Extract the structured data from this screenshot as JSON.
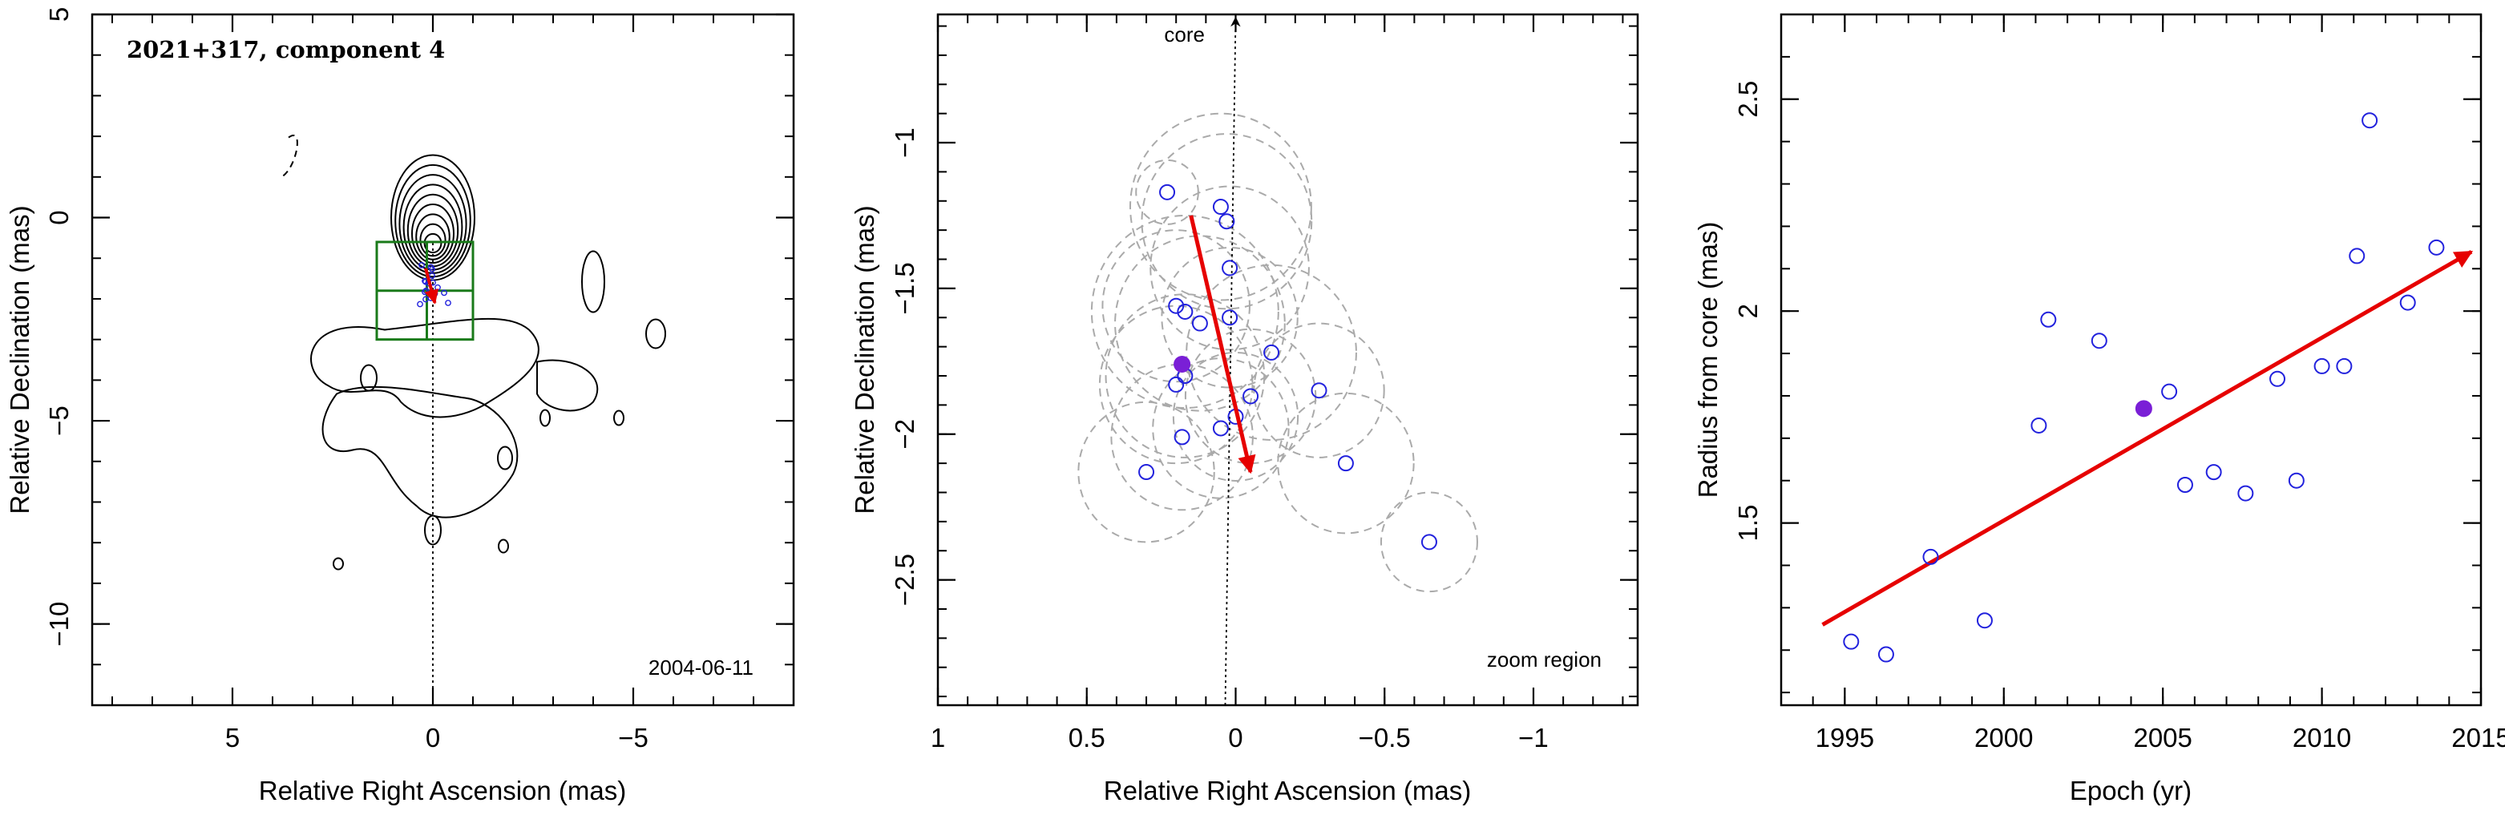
{
  "colors": {
    "accent": "#e60000",
    "points": "#2222dd",
    "filled": "#7a1fd6",
    "contour_box": "#1a7a1a",
    "ellipse": "#aaaaaa"
  },
  "chart_data": [
    {
      "type": "contour",
      "title": "2021+317, component 4",
      "epoch_label": "2004-06-11",
      "xlabel": "Relative Right Ascension (mas)",
      "ylabel": "Relative Declination (mas)",
      "xlim": [
        8.5,
        -9
      ],
      "ylim": [
        -12,
        5
      ],
      "xticks": [
        "5",
        "0",
        "−5"
      ],
      "xtick_values": [
        5,
        0,
        -5
      ],
      "yticks": [
        "5",
        "0",
        "−5",
        "−10"
      ],
      "ytick_values": [
        5,
        0,
        -5,
        -10
      ],
      "zoom_box": {
        "x": [
          1.4,
          -1.0
        ],
        "y": [
          -3.0,
          -0.6
        ]
      },
      "arrow": {
        "from": [
          0.18,
          -1.25
        ],
        "to": [
          -0.05,
          -2.1
        ]
      },
      "points": [
        [
          0.28,
          -1.17
        ],
        [
          0.05,
          -1.22
        ],
        [
          0.02,
          -1.27
        ],
        [
          0.02,
          -1.43
        ],
        [
          0.2,
          -1.56
        ],
        [
          0.18,
          -1.58
        ],
        [
          0.12,
          -1.62
        ],
        [
          0.0,
          -1.6
        ],
        [
          -0.12,
          -1.72
        ],
        [
          0.17,
          -1.8
        ],
        [
          0.2,
          -1.83
        ],
        [
          -0.05,
          -1.87
        ],
        [
          -0.28,
          -1.85
        ],
        [
          0.18,
          -2.01
        ],
        [
          0.05,
          -1.98
        ],
        [
          0.0,
          -1.94
        ],
        [
          -0.38,
          -2.1
        ],
        [
          0.32,
          -2.13
        ]
      ]
    },
    {
      "type": "scatter",
      "title": "",
      "core_label": "core",
      "region_label": "zoom region",
      "xlabel": "Relative Right Ascension (mas)",
      "ylabel": "Relative Declination (mas)",
      "xlim": [
        1,
        -1.35
      ],
      "ylim": [
        -2.93,
        -0.56
      ],
      "xticks": [
        "1",
        "0.5",
        "0",
        "−0.5",
        "−1"
      ],
      "xtick_values": [
        1,
        0.5,
        0,
        -0.5,
        -1
      ],
      "yticks": [
        "−1",
        "−1.5",
        "−2",
        "−2.5"
      ],
      "ytick_values": [
        -1,
        -1.5,
        -2,
        -2.5
      ],
      "points": [
        {
          "x": 0.23,
          "y": -1.17,
          "r": 0.11
        },
        {
          "x": 0.05,
          "y": -1.22,
          "r": 0.32
        },
        {
          "x": 0.03,
          "y": -1.27,
          "r": 0.3
        },
        {
          "x": 0.02,
          "y": -1.43,
          "r": 0.28
        },
        {
          "x": 0.2,
          "y": -1.56,
          "r": 0.26
        },
        {
          "x": 0.17,
          "y": -1.58,
          "r": 0.33
        },
        {
          "x": 0.12,
          "y": -1.62,
          "r": 0.3
        },
        {
          "x": 0.02,
          "y": -1.6,
          "r": 0.24
        },
        {
          "x": -0.12,
          "y": -1.72,
          "r": 0.3
        },
        {
          "x": 0.17,
          "y": -1.8,
          "r": 0.28
        },
        {
          "x": 0.2,
          "y": -1.83,
          "r": 0.27
        },
        {
          "x": -0.05,
          "y": -1.87,
          "r": 0.23
        },
        {
          "x": -0.28,
          "y": -1.85,
          "r": 0.23
        },
        {
          "x": 0.18,
          "y": -2.01,
          "r": 0.25
        },
        {
          "x": 0.05,
          "y": -1.98,
          "r": 0.24
        },
        {
          "x": 0.0,
          "y": -1.94,
          "r": 0.22
        },
        {
          "x": -0.37,
          "y": -2.1,
          "r": 0.24
        },
        {
          "x": 0.3,
          "y": -2.13,
          "r": 0.24
        },
        {
          "x": -0.65,
          "y": -2.37,
          "r": 0.17
        }
      ],
      "filled_point": {
        "x": 0.18,
        "y": -1.76
      },
      "arrow": {
        "from": [
          0.15,
          -1.25
        ],
        "to": [
          -0.05,
          -2.13
        ]
      },
      "core_line": {
        "from": [
          0.035,
          -2.93
        ],
        "to": [
          0.0,
          -0.56
        ]
      }
    },
    {
      "type": "scatter",
      "title": "",
      "xlabel": "Epoch (yr)",
      "ylabel": "Radius from core (mas)",
      "xlim": [
        1993,
        2015
      ],
      "ylim": [
        1.07,
        2.7
      ],
      "xticks": [
        "1995",
        "2000",
        "2005",
        "2010",
        "2015"
      ],
      "xtick_values": [
        1995,
        2000,
        2005,
        2010,
        2015
      ],
      "yticks": [
        "1.5",
        "2",
        "2.5"
      ],
      "ytick_values": [
        1.5,
        2,
        2.5
      ],
      "x": [
        1995.2,
        1996.3,
        1997.7,
        1999.4,
        2001.1,
        2001.4,
        2003.0,
        2005.2,
        2005.7,
        2006.6,
        2007.6,
        2008.6,
        2009.2,
        2010.0,
        2010.7,
        2011.1,
        2011.5,
        2012.7,
        2013.6
      ],
      "y": [
        1.22,
        1.19,
        1.42,
        1.27,
        1.73,
        1.98,
        1.93,
        1.81,
        1.59,
        1.62,
        1.57,
        1.84,
        1.6,
        1.87,
        1.87,
        2.13,
        2.45,
        2.02,
        2.15
      ],
      "filled_point": {
        "x": 2004.4,
        "y": 1.77
      },
      "trend_arrow": {
        "from": [
          1994.3,
          1.26
        ],
        "to": [
          2014.7,
          2.14
        ]
      }
    }
  ]
}
